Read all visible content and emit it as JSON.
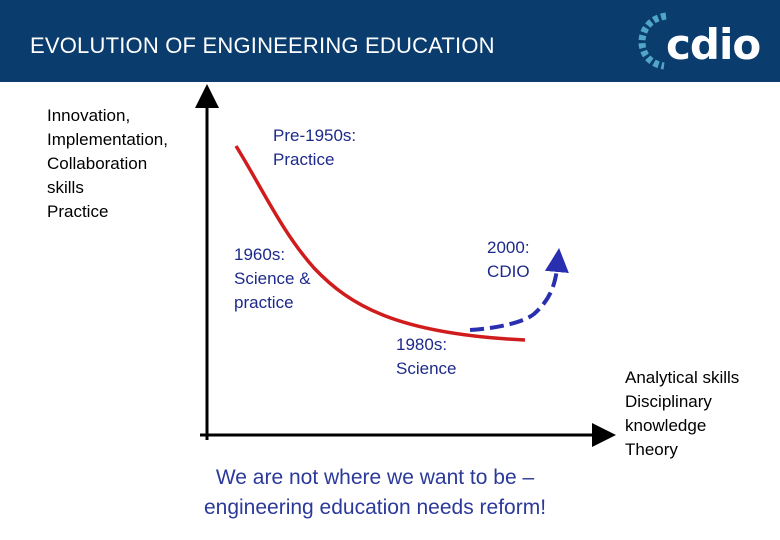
{
  "header": {
    "title": "EVOLUTION OF ENGINEERING EDUCATION",
    "logo_text": "cdio",
    "background_color": "#0a3d6e"
  },
  "axes": {
    "y_top_label_lines": [
      "Innovation,",
      "Implementation,",
      "Collaboration",
      "skills",
      "Practice"
    ],
    "x_right_label_lines": [
      "Analytical skills",
      "Disciplinary",
      "knowledge",
      "Theory"
    ]
  },
  "eras": {
    "pre1950": [
      "Pre-1950s:",
      "Practice"
    ],
    "e1960": [
      "1960s:",
      "Science &",
      "practice"
    ],
    "e1980": [
      "1980s:",
      "Science"
    ],
    "e2000": [
      "2000:",
      "CDIO"
    ]
  },
  "conclusion_lines": [
    "We are not where we want to be –",
    "engineering education needs reform!"
  ],
  "colors": {
    "curve": "#d01c1c",
    "future_path": "#2a2fb0",
    "era_text": "#1d2a8a",
    "conclusion_text": "#2b3a9a",
    "axis": "#000000"
  }
}
